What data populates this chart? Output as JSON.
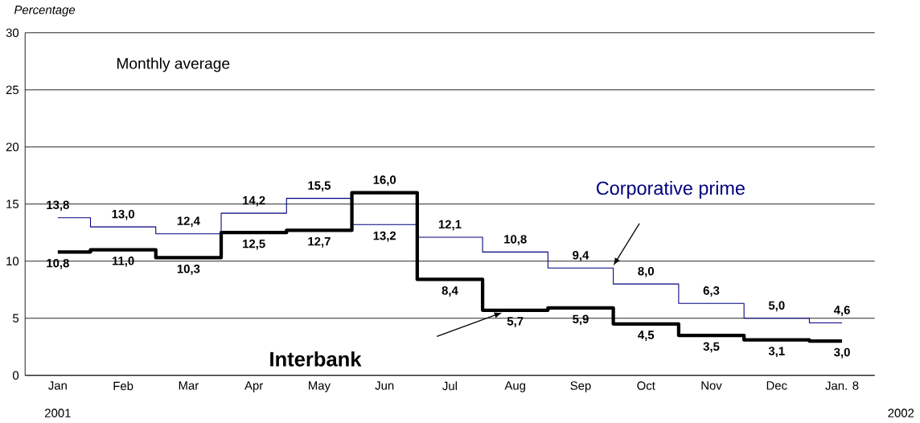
{
  "chart_data": {
    "type": "step",
    "ylabel": "Percentage",
    "categories": [
      "Jan",
      "Feb",
      "Mar",
      "Apr",
      "May",
      "Jun",
      "Jul",
      "Aug",
      "Sep",
      "Oct",
      "Nov",
      "Dec",
      "Jan. 8"
    ],
    "series": [
      {
        "name": "Corporative prime",
        "color": "#000080",
        "values": [
          13.8,
          13.0,
          12.4,
          14.2,
          15.5,
          13.2,
          12.1,
          10.8,
          9.4,
          8.0,
          6.3,
          5.0,
          4.6
        ],
        "value_labels": [
          "13,8",
          "13,0",
          "12,4",
          "14,2",
          "15,5",
          "13,2",
          "12,1",
          "10,8",
          "9,4",
          "8,0",
          "6,3",
          "5,0",
          "4,6"
        ]
      },
      {
        "name": "Interbank",
        "color": "#000000",
        "values": [
          10.8,
          11.0,
          10.3,
          12.5,
          12.7,
          16.0,
          8.4,
          5.7,
          5.9,
          4.5,
          3.5,
          3.1,
          3.0
        ],
        "value_labels": [
          "10,8",
          "11,0",
          "10,3",
          "12,5",
          "12,7",
          "16,0",
          "8,4",
          "5,7",
          "5,9",
          "4,5",
          "3,5",
          "3,1",
          "3,0"
        ]
      }
    ],
    "ylim": [
      0,
      30
    ],
    "yticks": [
      0,
      5,
      10,
      15,
      20,
      25,
      30
    ],
    "grid": "y",
    "annotations": [
      "Monthly average",
      "2001",
      "2002"
    ]
  }
}
